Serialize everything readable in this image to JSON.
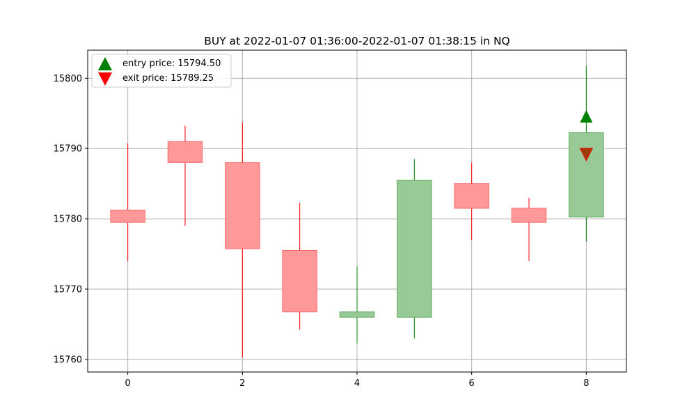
{
  "chart_data": {
    "type": "candlestick",
    "title": "BUY at 2022-01-07 01:36:00-2022-01-07 01:38:15 in NQ",
    "xlabel": "",
    "ylabel": "",
    "xlim": [
      -0.7,
      8.7
    ],
    "ylim": [
      15758.2,
      15804.0
    ],
    "x_ticks": [
      0,
      2,
      4,
      6,
      8
    ],
    "y_ticks": [
      15760,
      15770,
      15780,
      15790,
      15800
    ],
    "grid": true,
    "legend_position": "top-left",
    "colors": {
      "up_body": "#98ca98",
      "up_edge": "#5aaa5a",
      "up_wick": "#008000",
      "down_body": "#ff9999",
      "down_edge": "#ff6666",
      "down_wick": "#ff0000",
      "entry_marker": "#008000",
      "exit_marker_face": "#9c3a08",
      "exit_marker_edge": "#ff0000",
      "grid": "#b0b0b0"
    },
    "candles": [
      {
        "x": 0,
        "open": 15781.25,
        "close": 15779.5,
        "high": 15790.75,
        "low": 15774.0
      },
      {
        "x": 1,
        "open": 15791.0,
        "close": 15788.0,
        "high": 15793.25,
        "low": 15779.0
      },
      {
        "x": 2,
        "open": 15788.0,
        "close": 15775.75,
        "high": 15793.75,
        "low": 15760.25
      },
      {
        "x": 3,
        "open": 15775.5,
        "close": 15766.75,
        "high": 15782.25,
        "low": 15764.25
      },
      {
        "x": 4,
        "open": 15766.0,
        "close": 15766.75,
        "high": 15773.25,
        "low": 15762.25
      },
      {
        "x": 5,
        "open": 15766.0,
        "close": 15785.5,
        "high": 15788.5,
        "low": 15763.0
      },
      {
        "x": 6,
        "open": 15785.0,
        "close": 15781.5,
        "high": 15788.0,
        "low": 15777.0
      },
      {
        "x": 7,
        "open": 15781.5,
        "close": 15779.5,
        "high": 15783.0,
        "low": 15774.0
      },
      {
        "x": 8,
        "open": 15780.25,
        "close": 15792.25,
        "high": 15801.75,
        "low": 15776.75
      }
    ],
    "markers": [
      {
        "kind": "entry",
        "x": 8,
        "y": 15794.5,
        "shape": "triangle-up",
        "label": "entry price: 15794.50"
      },
      {
        "kind": "exit",
        "x": 8,
        "y": 15789.25,
        "shape": "triangle-down",
        "label": "exit price: 15789.25"
      }
    ]
  }
}
